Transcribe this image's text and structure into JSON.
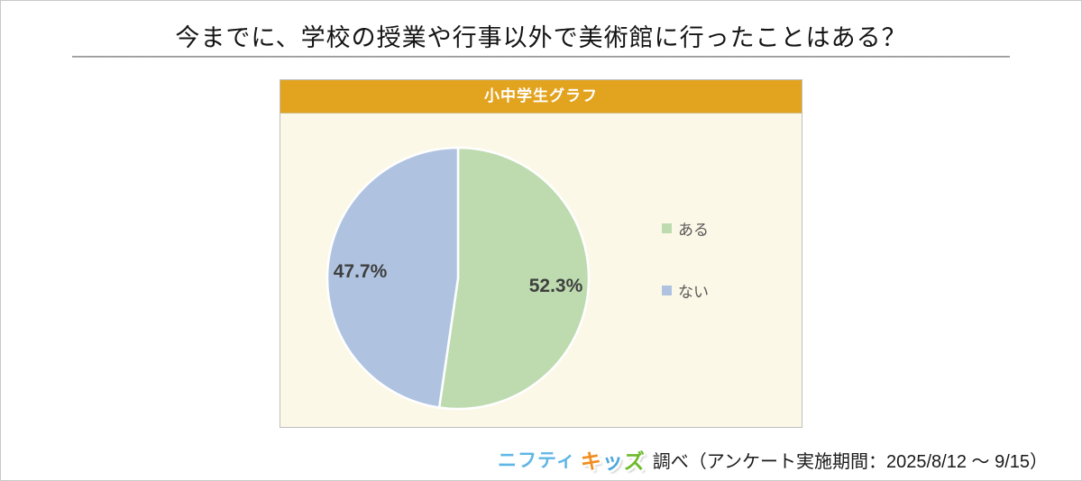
{
  "page": {
    "title": "今までに、学校の授業や行事以外で美術館に行ったことはある？"
  },
  "panel": {
    "header": "小中学生グラフ",
    "header_bg": "#E2A31F",
    "body_bg": "#FBF8E7"
  },
  "chart_data": {
    "type": "pie",
    "title": "小中学生グラフ",
    "categories": [
      "ある",
      "ない"
    ],
    "values": [
      52.3,
      47.7
    ],
    "labels": [
      "52.3%",
      "47.7%"
    ],
    "unit": "%",
    "colors": [
      "#BEDBB0",
      "#AFC3E1"
    ],
    "start_angle_deg": 0,
    "direction": "clockwise",
    "slice_gap_color": "#ffffff",
    "legend_position": "right",
    "legend": [
      {
        "label": "ある",
        "color": "#BEDBB0"
      },
      {
        "label": "ない",
        "color": "#AFC3E1"
      }
    ]
  },
  "footer": {
    "logo": {
      "nifty_text": "ニフティ",
      "nifty_color": "#5FB6E5",
      "kids_chars": [
        {
          "ch": "キ",
          "color": "#F28C1E"
        },
        {
          "ch": "ッ",
          "color": "#4FA8DC"
        },
        {
          "ch": "ズ",
          "color": "#6FBA2C"
        }
      ]
    },
    "text": "調べ（アンケート実施期間：2025/8/12 ～ 9/15）"
  }
}
